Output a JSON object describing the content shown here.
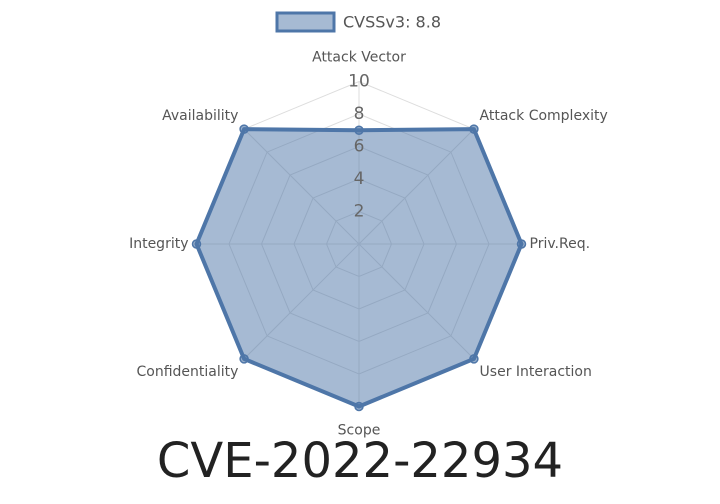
{
  "chart_data": {
    "type": "radar",
    "title": "CVE-2022-22934",
    "categories": [
      "Attack Vector",
      "Attack Complexity",
      "Priv.Req.",
      "User Interaction",
      "Scope",
      "Confidentiality",
      "Integrity",
      "Availability"
    ],
    "series": [
      {
        "name": "CVSSv3: 8.8",
        "color": "#4e76a8",
        "values": [
          7,
          10,
          10,
          10,
          10,
          10,
          10,
          10
        ]
      }
    ],
    "rlim": [
      0,
      10
    ],
    "rticks": [
      2,
      4,
      6,
      8,
      10
    ],
    "grid": true,
    "legend": "top"
  }
}
